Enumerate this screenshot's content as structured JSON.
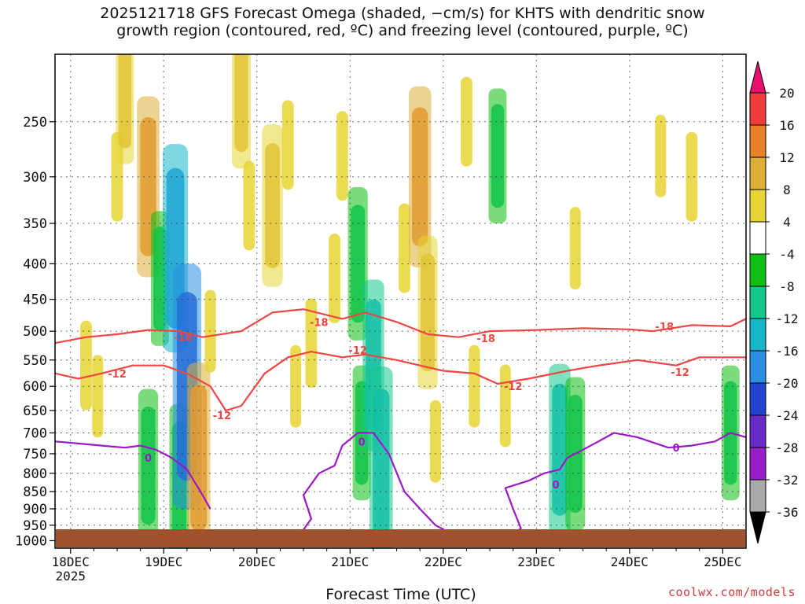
{
  "title": {
    "line1": "2025121718 GFS Forecast Omega (shaded, −cm/s) for KHTS with dendritic snow",
    "line2": "growth region (contoured, red, ºC) and freezing level (contoured, purple, ºC)"
  },
  "credit": "coolwx.com/models",
  "chart_data": {
    "type": "heatmap",
    "xlabel": "Forecast Time (UTC)",
    "ylabel": "",
    "x_ticks": [
      "18DEC",
      "19DEC",
      "20DEC",
      "21DEC",
      "22DEC",
      "23DEC",
      "24DEC",
      "25DEC"
    ],
    "x_year_label": "2025",
    "x_range_hours": [
      -4,
      174
    ],
    "y_ticks": [
      250,
      300,
      350,
      400,
      450,
      500,
      550,
      600,
      650,
      700,
      750,
      800,
      850,
      900,
      950,
      1000
    ],
    "y_range_hPa": [
      200,
      1025
    ],
    "y_scale": "log",
    "grid": true,
    "colorbar": {
      "labels": [
        "20",
        "16",
        "12",
        "8",
        "4",
        "-4",
        "-8",
        "-12",
        "-16",
        "-20",
        "-24",
        "-28",
        "-32",
        "-36"
      ],
      "colors": [
        "#e8106e",
        "#f03c3c",
        "#e8822a",
        "#ddae36",
        "#e6d535",
        "#ffffff",
        "#0fbf14",
        "#14c88a",
        "#16b6c8",
        "#2a8fe0",
        "#2244cc",
        "#6a2ac8",
        "#9a1ec8",
        "#aaaaaa",
        "#000000"
      ]
    },
    "omega_cells": [
      {
        "t": 4,
        "p": 560,
        "v": 6
      },
      {
        "t": 7,
        "p": 620,
        "v": 5
      },
      {
        "t": 12,
        "p": 300,
        "v": 6
      },
      {
        "t": 14,
        "p": 230,
        "v": 8
      },
      {
        "t": 20,
        "p": 310,
        "v": 13
      },
      {
        "t": 20,
        "p": 780,
        "v": -10
      },
      {
        "t": 23,
        "p": 420,
        "v": -8
      },
      {
        "t": 27,
        "p": 380,
        "v": -16
      },
      {
        "t": 28,
        "p": 820,
        "v": -10
      },
      {
        "t": 30,
        "p": 600,
        "v": -20
      },
      {
        "t": 33,
        "p": 760,
        "v": 14
      },
      {
        "t": 36,
        "p": 500,
        "v": 5
      },
      {
        "t": 44,
        "p": 230,
        "v": 9
      },
      {
        "t": 46,
        "p": 330,
        "v": 6
      },
      {
        "t": 52,
        "p": 330,
        "v": 11
      },
      {
        "t": 56,
        "p": 270,
        "v": 6
      },
      {
        "t": 58,
        "p": 600,
        "v": 5
      },
      {
        "t": 62,
        "p": 520,
        "v": 6
      },
      {
        "t": 68,
        "p": 420,
        "v": 6
      },
      {
        "t": 70,
        "p": 280,
        "v": 6
      },
      {
        "t": 74,
        "p": 400,
        "v": -10
      },
      {
        "t": 75,
        "p": 700,
        "v": -8
      },
      {
        "t": 78,
        "p": 560,
        "v": -12
      },
      {
        "t": 80,
        "p": 770,
        "v": -14
      },
      {
        "t": 86,
        "p": 380,
        "v": 6
      },
      {
        "t": 90,
        "p": 300,
        "v": 13
      },
      {
        "t": 92,
        "p": 470,
        "v": 10
      },
      {
        "t": 94,
        "p": 720,
        "v": 5
      },
      {
        "t": 102,
        "p": 250,
        "v": 6
      },
      {
        "t": 104,
        "p": 600,
        "v": 5
      },
      {
        "t": 110,
        "p": 280,
        "v": -8
      },
      {
        "t": 112,
        "p": 640,
        "v": 5
      },
      {
        "t": 126,
        "p": 740,
        "v": -12
      },
      {
        "t": 130,
        "p": 750,
        "v": -10
      },
      {
        "t": 130,
        "p": 380,
        "v": 5
      },
      {
        "t": 152,
        "p": 280,
        "v": 5
      },
      {
        "t": 160,
        "p": 300,
        "v": 6
      },
      {
        "t": 170,
        "p": 700,
        "v": -8
      }
    ],
    "contours": [
      {
        "label": "-18",
        "color": "#f04545",
        "points": [
          [
            -4,
            520
          ],
          [
            4,
            510
          ],
          [
            12,
            505
          ],
          [
            20,
            498
          ],
          [
            28,
            500
          ],
          [
            34,
            510
          ],
          [
            44,
            500
          ],
          [
            52,
            470
          ],
          [
            60,
            465
          ],
          [
            70,
            480
          ],
          [
            76,
            470
          ],
          [
            84,
            485
          ],
          [
            92,
            505
          ],
          [
            100,
            510
          ],
          [
            108,
            500
          ],
          [
            120,
            498
          ],
          [
            132,
            495
          ],
          [
            144,
            497
          ],
          [
            150,
            500
          ],
          [
            160,
            490
          ],
          [
            170,
            492
          ],
          [
            174,
            480
          ]
        ],
        "label_positions": [
          [
            29,
            510
          ],
          [
            64,
            485
          ],
          [
            107,
            512
          ],
          [
            153,
            492
          ]
        ]
      },
      {
        "label": "-12",
        "color": "#f04545",
        "points": [
          [
            -4,
            575
          ],
          [
            2,
            585
          ],
          [
            8,
            575
          ],
          [
            16,
            560
          ],
          [
            24,
            560
          ],
          [
            30,
            575
          ],
          [
            36,
            600
          ],
          [
            40,
            650
          ],
          [
            44,
            640
          ],
          [
            50,
            575
          ],
          [
            56,
            545
          ],
          [
            62,
            535
          ],
          [
            70,
            545
          ],
          [
            76,
            540
          ],
          [
            84,
            550
          ],
          [
            90,
            560
          ],
          [
            96,
            570
          ],
          [
            104,
            575
          ],
          [
            110,
            595
          ],
          [
            118,
            585
          ],
          [
            128,
            570
          ],
          [
            136,
            560
          ],
          [
            146,
            550
          ],
          [
            156,
            560
          ],
          [
            162,
            545
          ],
          [
            174,
            545
          ]
        ],
        "label_positions": [
          [
            12,
            575
          ],
          [
            39,
            660
          ],
          [
            74,
            532
          ],
          [
            114,
            600
          ],
          [
            157,
            572
          ]
        ]
      },
      {
        "label": "0",
        "color": "#9a18c8",
        "points": [
          [
            -4,
            720
          ],
          [
            2,
            725
          ],
          [
            8,
            730
          ],
          [
            14,
            735
          ],
          [
            18,
            730
          ],
          [
            22,
            740
          ],
          [
            26,
            760
          ],
          [
            30,
            790
          ],
          [
            34,
            860
          ],
          [
            36,
            900
          ]
        ],
        "label_positions": [
          [
            20,
            760
          ]
        ]
      },
      {
        "label": "0",
        "color": "#9a18c8",
        "points": [
          [
            58,
            1000
          ],
          [
            62,
            930
          ],
          [
            60,
            860
          ],
          [
            64,
            800
          ],
          [
            68,
            780
          ],
          [
            70,
            730
          ],
          [
            74,
            700
          ],
          [
            78,
            700
          ],
          [
            82,
            750
          ],
          [
            86,
            850
          ],
          [
            90,
            900
          ],
          [
            94,
            950
          ],
          [
            100,
            990
          ]
        ],
        "label_positions": [
          [
            75,
            720
          ]
        ]
      },
      {
        "label": "0",
        "color": "#9a18c8",
        "points": [
          [
            112,
            1000
          ],
          [
            116,
            960
          ],
          [
            114,
            900
          ],
          [
            112,
            840
          ],
          [
            118,
            820
          ],
          [
            122,
            800
          ],
          [
            126,
            790
          ],
          [
            128,
            760
          ],
          [
            132,
            740
          ],
          [
            136,
            720
          ],
          [
            140,
            700
          ],
          [
            146,
            710
          ],
          [
            154,
            735
          ],
          [
            160,
            730
          ],
          [
            166,
            720
          ],
          [
            170,
            700
          ],
          [
            174,
            710
          ]
        ],
        "label_positions": [
          [
            125,
            830
          ],
          [
            156,
            735
          ]
        ]
      }
    ]
  }
}
